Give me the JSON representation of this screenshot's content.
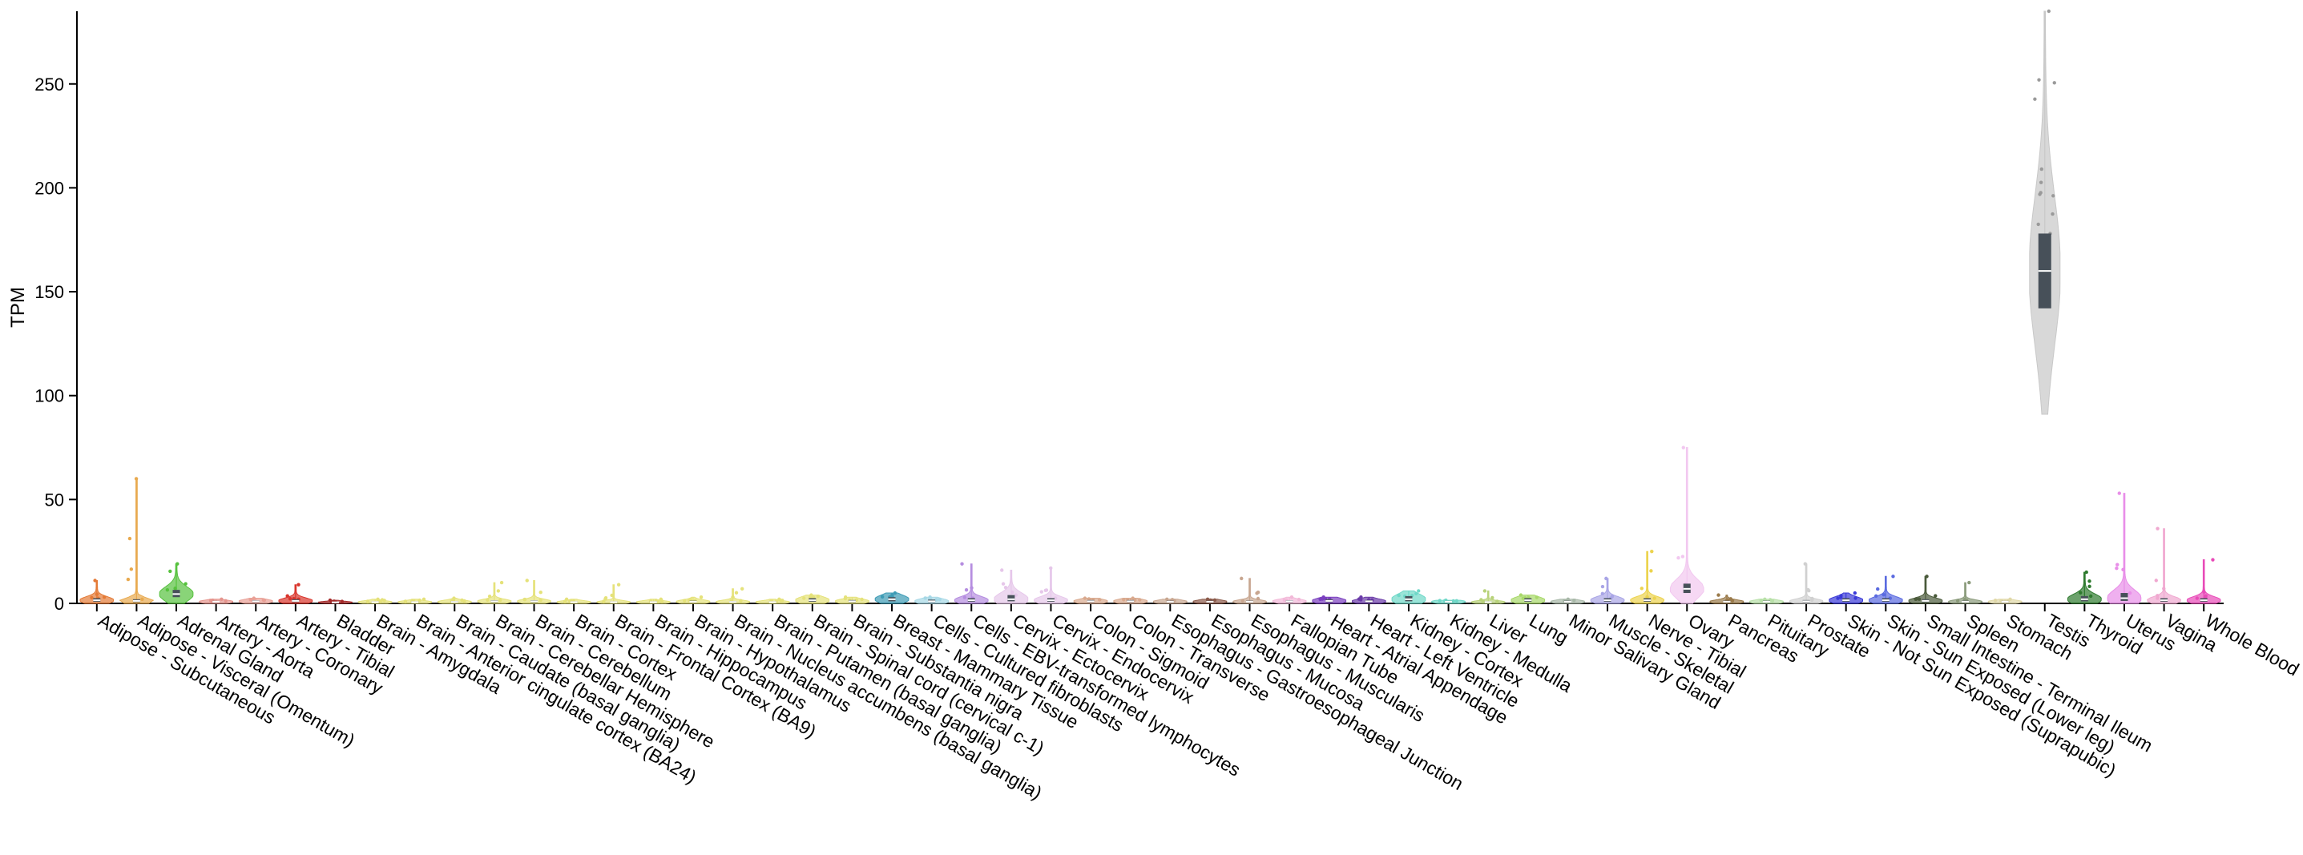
{
  "chart_data": {
    "type": "violin",
    "ylabel": "TPM",
    "ylim": [
      0,
      285
    ],
    "yticks": [
      0,
      50,
      100,
      150,
      200,
      250
    ],
    "grid": false,
    "legend": "none",
    "series": [
      {
        "category": "Adipose - Subcutaneous",
        "color": "#e47a36",
        "median": 1.5,
        "q1": 0.8,
        "q3": 2.5,
        "max": 11
      },
      {
        "category": "Adipose - Visceral (Omentum)",
        "color": "#e8a94e",
        "median": 1.2,
        "q1": 0.6,
        "q3": 2.0,
        "max": 60
      },
      {
        "category": "Adrenal Gland",
        "color": "#57c23e",
        "median": 4.5,
        "q1": 3.0,
        "q3": 6.5,
        "max": 19
      },
      {
        "category": "Artery - Aorta",
        "color": "#e5958e",
        "median": 0.8,
        "q1": 0.4,
        "q3": 1.2,
        "max": 2
      },
      {
        "category": "Artery - Coronary",
        "color": "#e9a096",
        "median": 1.0,
        "q1": 0.5,
        "q3": 1.5,
        "max": 2.5
      },
      {
        "category": "Artery - Tibial",
        "color": "#d9342b",
        "median": 1.2,
        "q1": 0.6,
        "q3": 2.0,
        "max": 9
      },
      {
        "category": "Bladder",
        "color": "#a52a2a",
        "median": 0.5,
        "q1": 0.3,
        "q3": 0.8,
        "max": 1.5
      },
      {
        "category": "Brain - Amygdala",
        "color": "#e5e27a",
        "median": 0.6,
        "q1": 0.3,
        "q3": 1.0,
        "max": 2
      },
      {
        "category": "Brain - Anterior cingulate cortex (BA24)",
        "color": "#e5e27a",
        "median": 0.6,
        "q1": 0.3,
        "q3": 1.0,
        "max": 2
      },
      {
        "category": "Brain - Caudate (basal ganglia)",
        "color": "#e5e27a",
        "median": 0.7,
        "q1": 0.3,
        "q3": 1.1,
        "max": 2.5
      },
      {
        "category": "Brain - Cerebellar Hemisphere",
        "color": "#e5e27a",
        "median": 1.0,
        "q1": 0.5,
        "q3": 1.5,
        "max": 10
      },
      {
        "category": "Brain - Cerebellum",
        "color": "#e5e27a",
        "median": 1.0,
        "q1": 0.5,
        "q3": 1.5,
        "max": 11
      },
      {
        "category": "Brain - Cortex",
        "color": "#e5e27a",
        "median": 0.6,
        "q1": 0.3,
        "q3": 1.0,
        "max": 2
      },
      {
        "category": "Brain - Frontal Cortex (BA9)",
        "color": "#e5e27a",
        "median": 0.6,
        "q1": 0.3,
        "q3": 1.0,
        "max": 9
      },
      {
        "category": "Brain - Hippocampus",
        "color": "#e5e27a",
        "median": 0.6,
        "q1": 0.3,
        "q3": 1.0,
        "max": 2
      },
      {
        "category": "Brain - Hypothalamus",
        "color": "#e5e27a",
        "median": 0.8,
        "q1": 0.4,
        "q3": 1.3,
        "max": 3
      },
      {
        "category": "Brain - Nucleus accumbens (basal ganglia)",
        "color": "#e5e27a",
        "median": 0.7,
        "q1": 0.3,
        "q3": 1.1,
        "max": 7
      },
      {
        "category": "Brain - Putamen (basal ganglia)",
        "color": "#e5e27a",
        "median": 0.6,
        "q1": 0.3,
        "q3": 1.0,
        "max": 2
      },
      {
        "category": "Brain - Spinal cord (cervical c-1)",
        "color": "#e5e27a",
        "median": 1.5,
        "q1": 0.8,
        "q3": 2.5,
        "max": 4
      },
      {
        "category": "Brain - Substantia nigra",
        "color": "#e5e27a",
        "median": 1.0,
        "q1": 0.5,
        "q3": 1.6,
        "max": 3
      },
      {
        "category": "Breast - Mammary Tissue",
        "color": "#3d9bb5",
        "median": 2.0,
        "q1": 1.0,
        "q3": 3.0,
        "max": 5
      },
      {
        "category": "Cells - Cultured fibroblasts",
        "color": "#a7d8e6",
        "median": 1.0,
        "q1": 0.5,
        "q3": 1.8,
        "max": 3
      },
      {
        "category": "Cells - EBV-transformed lymphocytes",
        "color": "#b58de0",
        "median": 1.5,
        "q1": 0.8,
        "q3": 2.5,
        "max": 19
      },
      {
        "category": "Cervix - Ectocervix",
        "color": "#e6c7ea",
        "median": 2.0,
        "q1": 1.0,
        "q3": 4.0,
        "max": 16
      },
      {
        "category": "Cervix - Endocervix",
        "color": "#e6c7ea",
        "median": 1.5,
        "q1": 0.8,
        "q3": 2.5,
        "max": 17
      },
      {
        "category": "Colon - Sigmoid",
        "color": "#d9a98e",
        "median": 1.0,
        "q1": 0.5,
        "q3": 1.6,
        "max": 2.5
      },
      {
        "category": "Colon - Transverse",
        "color": "#d9a98e",
        "median": 1.0,
        "q1": 0.5,
        "q3": 1.6,
        "max": 2.5
      },
      {
        "category": "Esophagus - Gastroesophageal Junction",
        "color": "#c8a690",
        "median": 0.8,
        "q1": 0.4,
        "q3": 1.3,
        "max": 2
      },
      {
        "category": "Esophagus - Mucosa",
        "color": "#8b5a4a",
        "median": 0.8,
        "q1": 0.4,
        "q3": 1.3,
        "max": 2
      },
      {
        "category": "Esophagus - Muscularis",
        "color": "#c8a690",
        "median": 0.8,
        "q1": 0.4,
        "q3": 1.3,
        "max": 12
      },
      {
        "category": "Fallopian Tube",
        "color": "#f2b8d8",
        "median": 1.0,
        "q1": 0.5,
        "q3": 1.5,
        "max": 3
      },
      {
        "category": "Heart - Atrial Appendage",
        "color": "#7a3fbf",
        "median": 1.2,
        "q1": 0.6,
        "q3": 2.0,
        "max": 3
      },
      {
        "category": "Heart - Left Ventricle",
        "color": "#6a3aa8",
        "median": 1.0,
        "q1": 0.5,
        "q3": 1.6,
        "max": 3
      },
      {
        "category": "Kidney - Cortex",
        "color": "#6fd8c8",
        "median": 2.0,
        "q1": 1.0,
        "q3": 3.5,
        "max": 6
      },
      {
        "category": "Kidney - Medulla",
        "color": "#6fd8c8",
        "median": 0.8,
        "q1": 0.4,
        "q3": 1.2,
        "max": 1.5
      },
      {
        "category": "Liver",
        "color": "#b8d27a",
        "median": 0.6,
        "q1": 0.3,
        "q3": 1.0,
        "max": 6
      },
      {
        "category": "Lung",
        "color": "#a8d86a",
        "median": 1.5,
        "q1": 0.8,
        "q3": 2.5,
        "max": 4
      },
      {
        "category": "Minor Salivary Gland",
        "color": "#a8b8a8",
        "median": 0.8,
        "q1": 0.4,
        "q3": 1.3,
        "max": 2
      },
      {
        "category": "Muscle - Skeletal",
        "color": "#a9a5e6",
        "median": 1.5,
        "q1": 0.8,
        "q3": 2.5,
        "max": 12
      },
      {
        "category": "Nerve - Tibial",
        "color": "#ecd34e",
        "median": 1.5,
        "q1": 0.8,
        "q3": 2.5,
        "max": 25
      },
      {
        "category": "Ovary",
        "color": "#f2c8f0",
        "median": 7.0,
        "q1": 5.0,
        "q3": 9.5,
        "max": 75
      },
      {
        "category": "Pancreas",
        "color": "#9a7a4a",
        "median": 0.8,
        "q1": 0.4,
        "q3": 1.3,
        "max": 4
      },
      {
        "category": "Pituitary",
        "color": "#b8e0a8",
        "median": 0.8,
        "q1": 0.4,
        "q3": 1.3,
        "max": 2
      },
      {
        "category": "Prostate",
        "color": "#d0d0d0",
        "median": 1.0,
        "q1": 0.5,
        "q3": 1.6,
        "max": 19
      },
      {
        "category": "Skin - Not Sun Exposed (Suprapubic)",
        "color": "#3a3ad8",
        "median": 1.5,
        "q1": 0.8,
        "q3": 2.5,
        "max": 5
      },
      {
        "category": "Skin - Sun Exposed (Lower leg)",
        "color": "#5a6ae0",
        "median": 1.5,
        "q1": 0.8,
        "q3": 2.5,
        "max": 13
      },
      {
        "category": "Small Intestine - Terminal Ileum",
        "color": "#4a5a3a",
        "median": 1.2,
        "q1": 0.6,
        "q3": 2.0,
        "max": 13
      },
      {
        "category": "Spleen",
        "color": "#8a9a7a",
        "median": 0.8,
        "q1": 0.4,
        "q3": 1.3,
        "max": 10
      },
      {
        "category": "Stomach",
        "color": "#e0d8a8",
        "median": 0.8,
        "q1": 0.4,
        "q3": 1.2,
        "max": 2
      },
      {
        "category": "Testis",
        "color": "#c8c8c8",
        "median": 160,
        "q1": 142,
        "q3": 178,
        "min": 91,
        "max": 285
      },
      {
        "category": "Thyroid",
        "color": "#2e7a2e",
        "median": 2.0,
        "q1": 1.0,
        "q3": 3.5,
        "max": 15
      },
      {
        "category": "Uterus",
        "color": "#e88ee8",
        "median": 2.5,
        "q1": 1.2,
        "q3": 5.0,
        "max": 53
      },
      {
        "category": "Vagina",
        "color": "#f0a8d0",
        "median": 1.5,
        "q1": 0.8,
        "q3": 2.5,
        "max": 36
      },
      {
        "category": "Whole Blood",
        "color": "#e84ab8",
        "median": 1.5,
        "q1": 0.8,
        "q3": 2.5,
        "max": 21
      }
    ]
  }
}
